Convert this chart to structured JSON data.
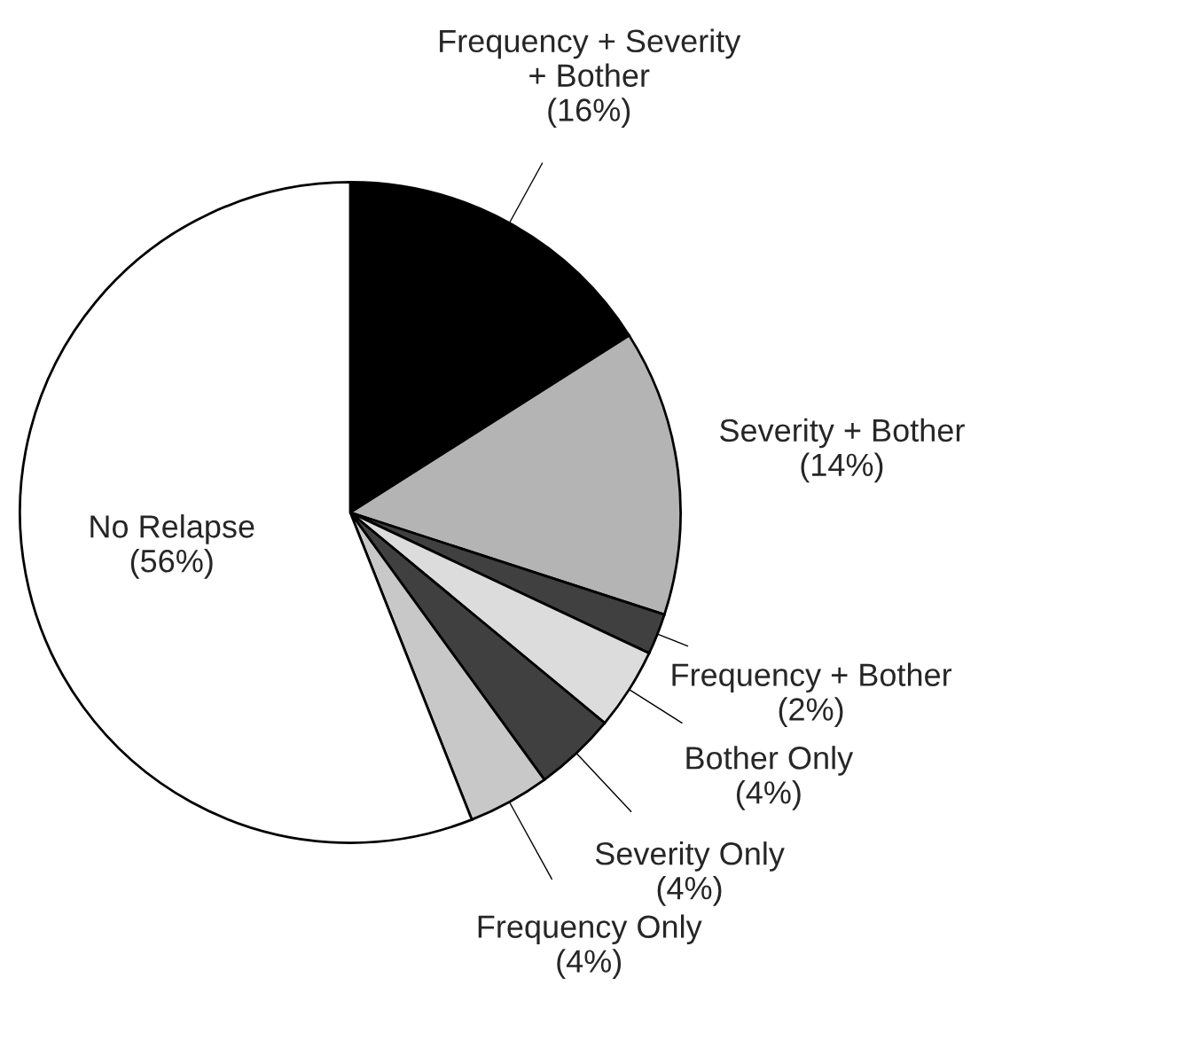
{
  "chart_data": {
    "type": "pie",
    "categories": [
      "Frequency + Severity\n+ Bother",
      "Severity + Bother",
      "Frequency + Bother",
      "Bother Only",
      "Severity Only",
      "Frequency Only",
      "No Relapse"
    ],
    "values": [
      16,
      14,
      2,
      4,
      4,
      4,
      56
    ],
    "value_labels": [
      "(16%)",
      "(14%)",
      "(2%)",
      "(4%)",
      "(4%)",
      "(4%)",
      "(56%)"
    ],
    "colors": [
      "#000000",
      "#b4b4b4",
      "#404040",
      "#dcdcdc",
      "#404040",
      "#c8c8c8",
      "#ffffff"
    ]
  }
}
